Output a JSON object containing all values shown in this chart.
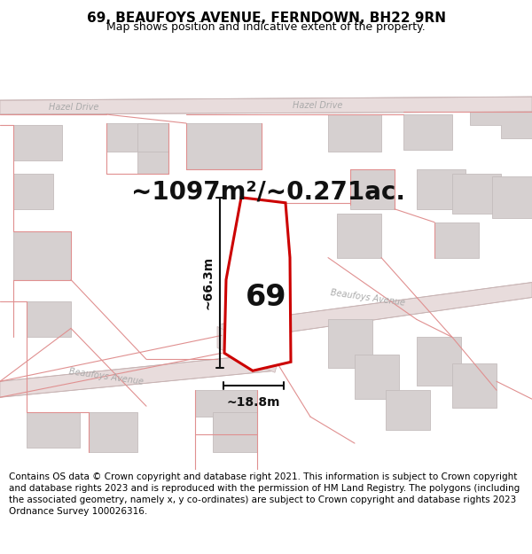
{
  "title": "69, BEAUFOYS AVENUE, FERNDOWN, BH22 9RN",
  "subtitle": "Map shows position and indicative extent of the property.",
  "footer": "Contains OS data © Crown copyright and database right 2021. This information is subject to Crown copyright and database rights 2023 and is reproduced with the permission of HM Land Registry. The polygons (including the associated geometry, namely x, y co-ordinates) are subject to Crown copyright and database rights 2023 Ordnance Survey 100026316.",
  "area_text": "~1097m²/~0.271ac.",
  "label_69": "69",
  "dim_height": "~66.3m",
  "dim_width": "~18.8m",
  "map_bg": "#f7f3f3",
  "building_fill": "#d6d0d0",
  "building_edge": "#c4bcbc",
  "road_fill": "#e8dcdc",
  "road_line": "#c8b4b4",
  "boundary_color": "#e09090",
  "property_color": "#cc0000",
  "property_lw": 2.2,
  "dim_color": "#111111",
  "street_color": "#aaaaaa",
  "title_fontsize": 11,
  "subtitle_fontsize": 9,
  "footer_fontsize": 7.5,
  "area_fontsize": 20,
  "label_fontsize": 24,
  "dim_fontsize": 10,
  "street_fontsize": 7
}
